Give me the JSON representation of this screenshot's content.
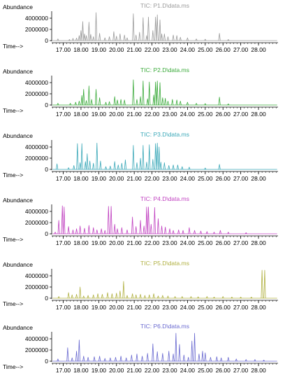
{
  "chart_data": [
    {
      "type": "line",
      "title": "TIC: P1.D\\data.ms",
      "ylabel": "Abundance",
      "xlabel": "Time-->",
      "color": "#9a9a9a",
      "xlim": [
        16.35,
        29.1
      ],
      "ylim": [
        0,
        5500000
      ],
      "x_ticks": [
        "17.00",
        "18.00",
        "19.00",
        "20.00",
        "21.00",
        "22.00",
        "23.00",
        "24.00",
        "25.00",
        "26.00",
        "27.00",
        "28.00"
      ],
      "y_ticks": [
        "4000000",
        "2000000",
        "0"
      ],
      "peaks": [
        [
          16.7,
          300000
        ],
        [
          17.35,
          200000
        ],
        [
          17.55,
          400000
        ],
        [
          17.75,
          450000
        ],
        [
          17.9,
          900000
        ],
        [
          18.0,
          1800000
        ],
        [
          18.1,
          3400000
        ],
        [
          18.2,
          1200000
        ],
        [
          18.3,
          900000
        ],
        [
          18.45,
          3300000
        ],
        [
          18.55,
          1100000
        ],
        [
          18.7,
          700000
        ],
        [
          18.85,
          5000000
        ],
        [
          19.05,
          1300000
        ],
        [
          19.35,
          500000
        ],
        [
          19.6,
          700000
        ],
        [
          19.85,
          1600000
        ],
        [
          20.0,
          800000
        ],
        [
          20.2,
          1200000
        ],
        [
          20.45,
          1000000
        ],
        [
          20.6,
          500000
        ],
        [
          20.95,
          4800000
        ],
        [
          21.1,
          1000000
        ],
        [
          21.3,
          1500000
        ],
        [
          21.5,
          4100000
        ],
        [
          21.7,
          900000
        ],
        [
          21.8,
          4200000
        ],
        [
          22.05,
          1800000
        ],
        [
          22.2,
          4200000
        ],
        [
          22.3,
          4600000
        ],
        [
          22.45,
          3700000
        ],
        [
          22.55,
          1200000
        ],
        [
          22.7,
          1200000
        ],
        [
          22.9,
          700000
        ],
        [
          23.2,
          1000000
        ],
        [
          23.4,
          900000
        ],
        [
          23.6,
          600000
        ],
        [
          24.0,
          500000
        ],
        [
          24.5,
          300000
        ],
        [
          25.0,
          250000
        ],
        [
          25.8,
          1300000
        ],
        [
          26.3,
          200000
        ]
      ]
    },
    {
      "type": "line",
      "title": "TIC: P2.D\\data.ms",
      "ylabel": "Abundance",
      "xlabel": "Time-->",
      "color": "#3aaa3a",
      "xlim": [
        16.35,
        29.1
      ],
      "ylim": [
        0,
        5500000
      ],
      "x_ticks": [
        "17.00",
        "18.00",
        "19.00",
        "20.00",
        "21.00",
        "22.00",
        "23.00",
        "24.00",
        "25.00",
        "26.00",
        "27.00",
        "28.00"
      ],
      "y_ticks": [
        "4000000",
        "2000000",
        "0"
      ],
      "peaks": [
        [
          16.7,
          300000
        ],
        [
          17.4,
          300000
        ],
        [
          17.7,
          500000
        ],
        [
          17.9,
          700000
        ],
        [
          18.05,
          1700000
        ],
        [
          18.15,
          2800000
        ],
        [
          18.3,
          800000
        ],
        [
          18.45,
          3400000
        ],
        [
          18.6,
          1000000
        ],
        [
          18.85,
          2800000
        ],
        [
          19.05,
          1300000
        ],
        [
          19.4,
          500000
        ],
        [
          19.6,
          600000
        ],
        [
          19.9,
          1500000
        ],
        [
          20.05,
          900000
        ],
        [
          20.25,
          1000000
        ],
        [
          20.45,
          900000
        ],
        [
          20.95,
          4500000
        ],
        [
          21.15,
          1000000
        ],
        [
          21.35,
          1500000
        ],
        [
          21.5,
          4300000
        ],
        [
          21.75,
          1100000
        ],
        [
          21.85,
          4100000
        ],
        [
          22.1,
          1800000
        ],
        [
          22.2,
          4100000
        ],
        [
          22.3,
          4300000
        ],
        [
          22.45,
          4000000
        ],
        [
          22.6,
          1300000
        ],
        [
          22.75,
          1200000
        ],
        [
          22.9,
          700000
        ],
        [
          23.15,
          1000000
        ],
        [
          23.4,
          900000
        ],
        [
          23.6,
          700000
        ],
        [
          24.0,
          500000
        ],
        [
          24.5,
          300000
        ],
        [
          25.0,
          250000
        ],
        [
          25.8,
          1400000
        ],
        [
          26.3,
          200000
        ]
      ]
    },
    {
      "type": "line",
      "title": "TIC: P3.D\\data.ms",
      "ylabel": "Abundance",
      "xlabel": "Time-->",
      "color": "#3aa8b8",
      "xlim": [
        16.35,
        29.1
      ],
      "ylim": [
        0,
        5500000
      ],
      "x_ticks": [
        "17.00",
        "18.00",
        "19.00",
        "20.00",
        "21.00",
        "22.00",
        "23.00",
        "24.00",
        "25.00",
        "26.00",
        "27.00",
        "28.00"
      ],
      "y_ticks": [
        "4000000",
        "2000000",
        "0"
      ],
      "peaks": [
        [
          16.65,
          1000000
        ],
        [
          17.3,
          300000
        ],
        [
          17.6,
          700000
        ],
        [
          17.8,
          4600000
        ],
        [
          17.95,
          1200000
        ],
        [
          18.05,
          4600000
        ],
        [
          18.25,
          1400000
        ],
        [
          18.35,
          2800000
        ],
        [
          18.5,
          1500000
        ],
        [
          18.7,
          1100000
        ],
        [
          18.9,
          4700000
        ],
        [
          19.1,
          1500000
        ],
        [
          19.4,
          500000
        ],
        [
          19.65,
          600000
        ],
        [
          19.9,
          1400000
        ],
        [
          20.1,
          800000
        ],
        [
          20.3,
          1100000
        ],
        [
          20.5,
          1700000
        ],
        [
          20.95,
          4300000
        ],
        [
          21.15,
          1200000
        ],
        [
          21.35,
          2000000
        ],
        [
          21.5,
          4300000
        ],
        [
          21.7,
          1300000
        ],
        [
          21.85,
          4400000
        ],
        [
          22.05,
          1800000
        ],
        [
          22.2,
          4600000
        ],
        [
          22.3,
          4700000
        ],
        [
          22.4,
          4000000
        ],
        [
          22.5,
          1300000
        ],
        [
          22.7,
          1200000
        ],
        [
          22.95,
          700000
        ],
        [
          23.2,
          800000
        ],
        [
          23.45,
          800000
        ],
        [
          23.7,
          500000
        ],
        [
          24.1,
          400000
        ],
        [
          25.0,
          250000
        ],
        [
          25.8,
          900000
        ]
      ]
    },
    {
      "type": "line",
      "title": "TIC: P4.D\\data.ms",
      "ylabel": "Abundance",
      "xlabel": "Time-->",
      "color": "#c040c0",
      "xlim": [
        16.35,
        29.1
      ],
      "ylim": [
        0,
        5500000
      ],
      "x_ticks": [
        "17.00",
        "18.00",
        "19.00",
        "20.00",
        "21.00",
        "22.00",
        "23.00",
        "24.00",
        "25.00",
        "26.00",
        "27.00",
        "28.00"
      ],
      "y_ticks": [
        "4000000",
        "2000000",
        "0"
      ],
      "peaks": [
        [
          16.55,
          300000
        ],
        [
          16.75,
          2400000
        ],
        [
          16.95,
          5000000
        ],
        [
          17.05,
          4800000
        ],
        [
          17.3,
          1300000
        ],
        [
          17.55,
          700000
        ],
        [
          17.75,
          900000
        ],
        [
          17.95,
          1400000
        ],
        [
          18.2,
          1000000
        ],
        [
          18.45,
          1500000
        ],
        [
          18.7,
          1100000
        ],
        [
          18.9,
          700000
        ],
        [
          19.15,
          900000
        ],
        [
          19.35,
          600000
        ],
        [
          19.55,
          4900000
        ],
        [
          19.7,
          4900000
        ],
        [
          19.9,
          1700000
        ],
        [
          20.05,
          900000
        ],
        [
          20.3,
          1100000
        ],
        [
          20.6,
          700000
        ],
        [
          20.9,
          3000000
        ],
        [
          21.1,
          1300000
        ],
        [
          21.35,
          2400000
        ],
        [
          21.55,
          1400000
        ],
        [
          21.7,
          4800000
        ],
        [
          21.8,
          4800000
        ],
        [
          21.95,
          1700000
        ],
        [
          22.15,
          4700000
        ],
        [
          22.35,
          2700000
        ],
        [
          22.55,
          1400000
        ],
        [
          22.75,
          1200000
        ],
        [
          23.0,
          900000
        ],
        [
          23.2,
          600000
        ],
        [
          23.5,
          700000
        ],
        [
          23.75,
          600000
        ],
        [
          24.1,
          1100000
        ],
        [
          24.4,
          600000
        ],
        [
          24.75,
          500000
        ],
        [
          25.1,
          400000
        ],
        [
          25.5,
          300000
        ],
        [
          25.85,
          600000
        ],
        [
          26.3,
          300000
        ],
        [
          27.3,
          200000
        ]
      ]
    },
    {
      "type": "line",
      "title": "TIC: P5.D\\data.ms",
      "ylabel": "Abundance",
      "xlabel": "Time-->",
      "color": "#b0b040",
      "xlim": [
        16.35,
        29.1
      ],
      "ylim": [
        0,
        5500000
      ],
      "x_ticks": [
        "17.00",
        "18.00",
        "19.00",
        "20.00",
        "21.00",
        "22.00",
        "23.00",
        "24.00",
        "25.00",
        "26.00",
        "27.00",
        "28.00"
      ],
      "y_ticks": [
        "4000000",
        "2000000",
        "0"
      ],
      "peaks": [
        [
          16.75,
          300000
        ],
        [
          17.3,
          1000000
        ],
        [
          17.5,
          600000
        ],
        [
          17.75,
          700000
        ],
        [
          17.95,
          2000000
        ],
        [
          18.15,
          400000
        ],
        [
          18.4,
          500000
        ],
        [
          18.7,
          600000
        ],
        [
          18.95,
          800000
        ],
        [
          19.2,
          700000
        ],
        [
          19.5,
          1000000
        ],
        [
          19.75,
          800000
        ],
        [
          20.0,
          900000
        ],
        [
          20.2,
          1300000
        ],
        [
          20.4,
          3000000
        ],
        [
          20.6,
          500000
        ],
        [
          20.9,
          800000
        ],
        [
          21.1,
          600000
        ],
        [
          21.35,
          700000
        ],
        [
          21.6,
          500000
        ],
        [
          21.85,
          600000
        ],
        [
          22.1,
          800000
        ],
        [
          22.35,
          400000
        ],
        [
          22.6,
          500000
        ],
        [
          22.9,
          400000
        ],
        [
          23.3,
          300000
        ],
        [
          23.7,
          300000
        ],
        [
          24.2,
          300000
        ],
        [
          24.6,
          250000
        ],
        [
          25.1,
          300000
        ],
        [
          25.5,
          200000
        ],
        [
          26.0,
          300000
        ],
        [
          26.5,
          200000
        ],
        [
          27.0,
          200000
        ],
        [
          27.6,
          200000
        ],
        [
          28.2,
          5000000
        ],
        [
          28.35,
          5000000
        ]
      ]
    },
    {
      "type": "line",
      "title": "TIC: P6.D\\data.ms",
      "ylabel": "Abundance",
      "xlabel": "Time-->",
      "color": "#6a6ad0",
      "xlim": [
        16.35,
        29.1
      ],
      "ylim": [
        0,
        5500000
      ],
      "x_ticks": [
        "17.00",
        "18.00",
        "19.00",
        "20.00",
        "21.00",
        "22.00",
        "23.00",
        "24.00",
        "25.00",
        "26.00",
        "27.00",
        "28.00"
      ],
      "y_ticks": [
        "4000000",
        "2000000",
        "0"
      ],
      "peaks": [
        [
          16.7,
          400000
        ],
        [
          17.25,
          2400000
        ],
        [
          17.5,
          600000
        ],
        [
          17.75,
          1800000
        ],
        [
          17.9,
          3800000
        ],
        [
          18.15,
          900000
        ],
        [
          18.4,
          700000
        ],
        [
          18.75,
          800000
        ],
        [
          19.05,
          900000
        ],
        [
          19.35,
          500000
        ],
        [
          19.65,
          600000
        ],
        [
          19.95,
          700000
        ],
        [
          20.25,
          900000
        ],
        [
          20.55,
          600000
        ],
        [
          20.85,
          1100000
        ],
        [
          21.15,
          1300000
        ],
        [
          21.45,
          900000
        ],
        [
          21.75,
          1400000
        ],
        [
          22.05,
          3100000
        ],
        [
          22.3,
          1700000
        ],
        [
          22.6,
          1400000
        ],
        [
          22.95,
          1800000
        ],
        [
          23.2,
          1300000
        ],
        [
          23.35,
          5000000
        ],
        [
          23.55,
          3000000
        ],
        [
          23.8,
          1100000
        ],
        [
          24.05,
          700000
        ],
        [
          24.25,
          3600000
        ],
        [
          24.4,
          5000000
        ],
        [
          24.65,
          1300000
        ],
        [
          24.85,
          1800000
        ],
        [
          25.0,
          1500000
        ],
        [
          25.3,
          700000
        ],
        [
          25.65,
          800000
        ],
        [
          25.9,
          600000
        ],
        [
          26.3,
          700000
        ],
        [
          26.75,
          400000
        ],
        [
          27.3,
          300000
        ],
        [
          27.8,
          300000
        ],
        [
          28.3,
          200000
        ]
      ]
    }
  ]
}
